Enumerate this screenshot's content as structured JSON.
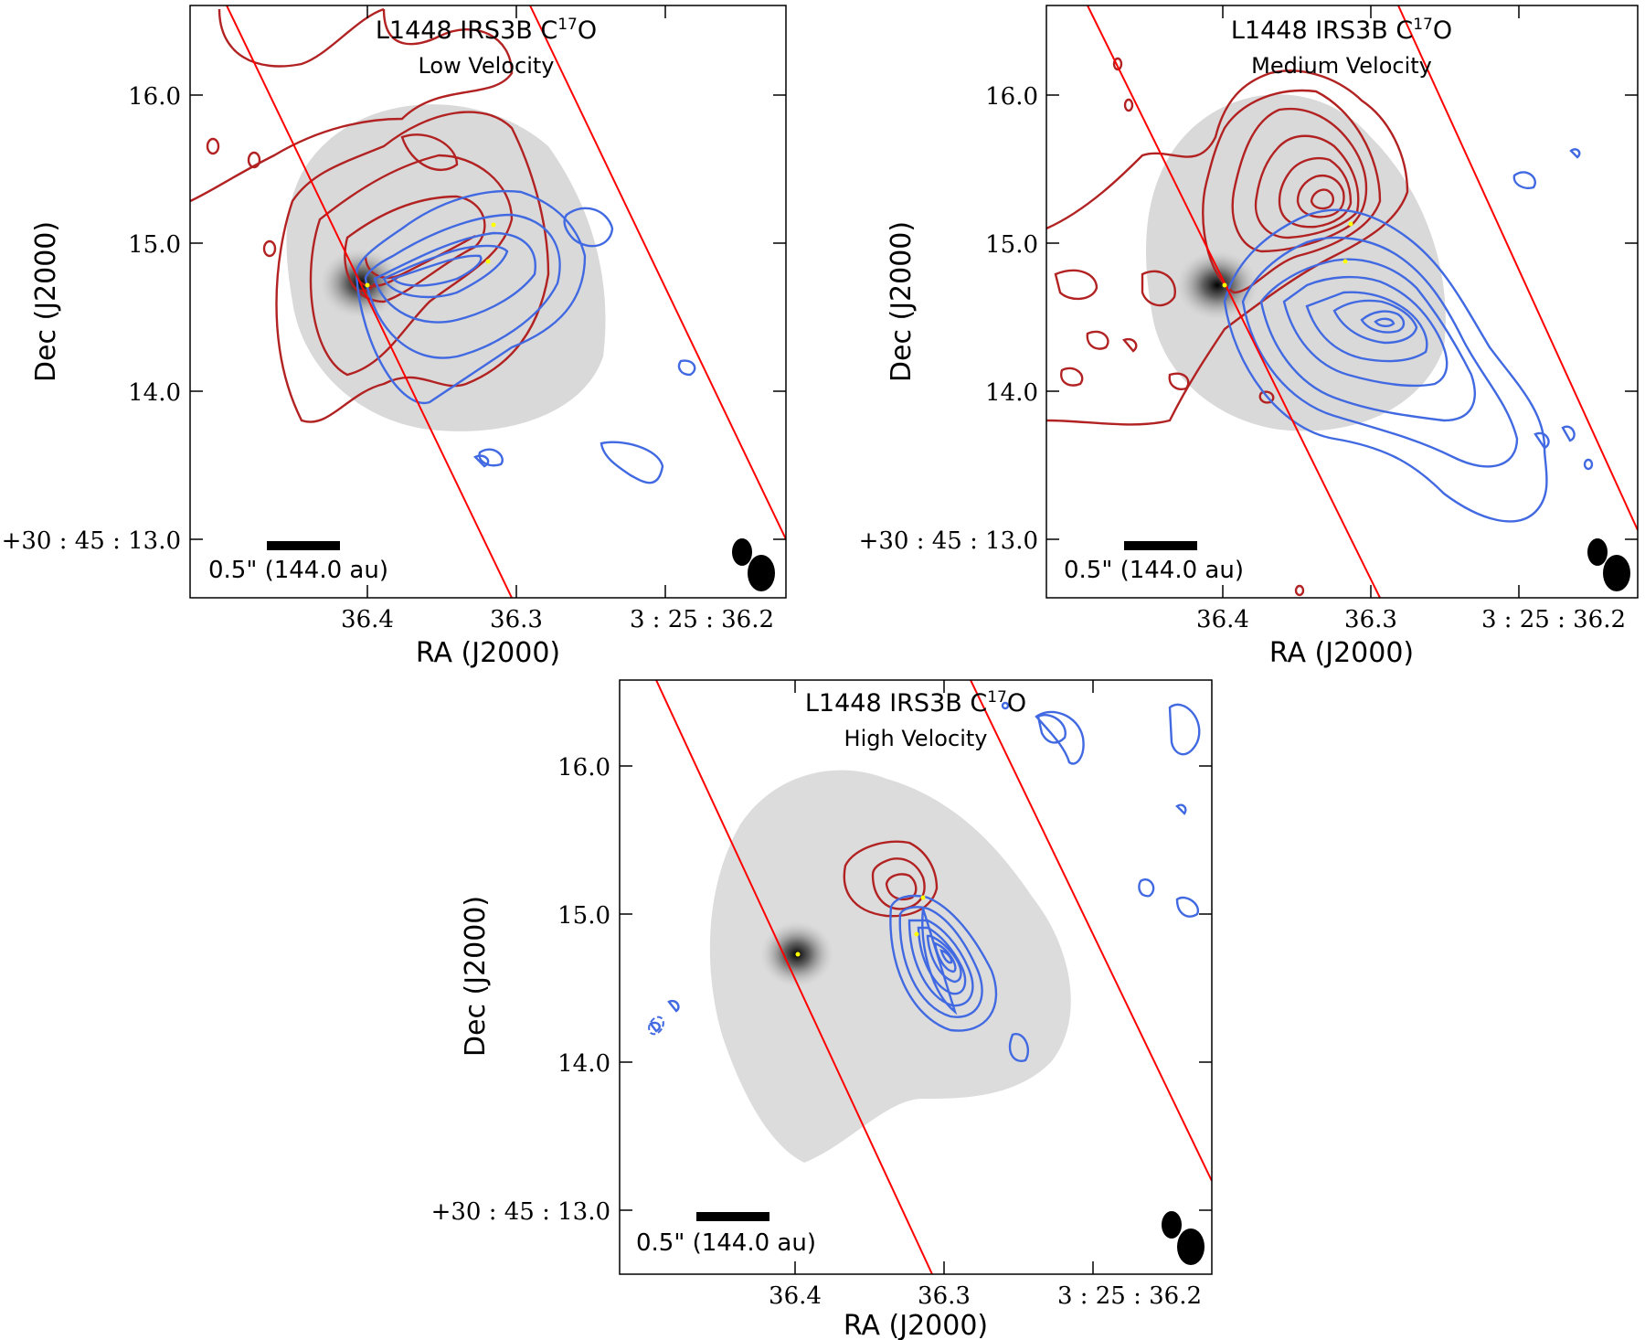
{
  "panels": [
    {
      "title": "L1448 IRS3B C",
      "sup": "17",
      "title_suffix": "O",
      "subtitle": "Low Velocity",
      "scale_label": "0.5\" (144.0 au)",
      "xlabel": "RA (J2000)",
      "ylabel": "Dec (J2000)",
      "yticks": [
        "16.0",
        "15.0",
        "14.0",
        "+30 : 45 : 13.0"
      ],
      "xticks": [
        "36.4",
        "36.3",
        "3 : 25 : 36.2"
      ]
    },
    {
      "title": "L1448 IRS3B C",
      "sup": "17",
      "title_suffix": "O",
      "subtitle": "Medium Velocity",
      "scale_label": "0.5\" (144.0 au)",
      "xlabel": "RA (J2000)",
      "ylabel": "Dec (J2000)",
      "yticks": [
        "16.0",
        "15.0",
        "14.0",
        "+30 : 45 : 13.0"
      ],
      "xticks": [
        "36.4",
        "36.3",
        "3 : 25 : 36.2"
      ]
    },
    {
      "title": "L1448 IRS3B C",
      "sup": "17",
      "title_suffix": "O",
      "subtitle": "High Velocity",
      "scale_label": "0.5\" (144.0 au)",
      "xlabel": "RA (J2000)",
      "ylabel": "Dec (J2000)",
      "yticks": [
        "16.0",
        "15.0",
        "14.0",
        "+30 : 45 : 13.0"
      ],
      "xticks": [
        "36.4",
        "36.3",
        "3 : 25 : 36.2"
      ]
    }
  ],
  "colors": {
    "red": "#b22222",
    "blue": "#4169e1",
    "line": "#ff0000",
    "star": "#ffff00"
  }
}
